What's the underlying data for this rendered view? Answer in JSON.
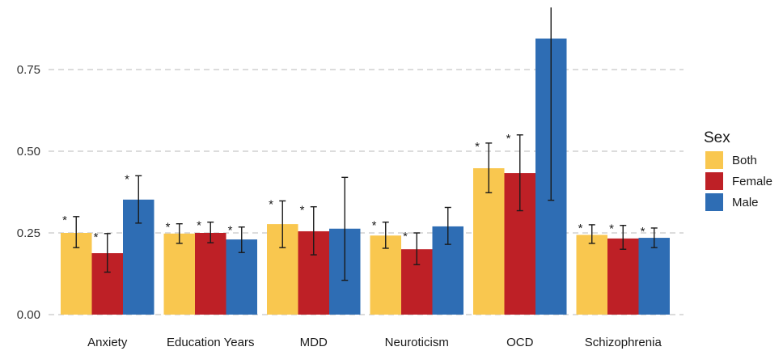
{
  "chart_data": {
    "type": "bar",
    "title": "",
    "xlabel": "",
    "ylabel": "",
    "ylim": [
      0,
      0.95
    ],
    "yticks": [
      "0.00",
      "0.25",
      "0.50",
      "0.75"
    ],
    "ytick_values": [
      0,
      0.25,
      0.5,
      0.75
    ],
    "grid": "horizontal dashed",
    "legend_position": "right",
    "legend_title": "Sex",
    "categories": [
      "Anxiety",
      "Education Years",
      "MDD",
      "Neuroticism",
      "OCD",
      "Schizophrenia"
    ],
    "series": [
      {
        "name": "Both",
        "color": "#F9C74F",
        "values": [
          0.25,
          0.248,
          0.277,
          0.242,
          0.448,
          0.244
        ],
        "err_low": [
          0.205,
          0.218,
          0.205,
          0.203,
          0.373,
          0.218
        ],
        "err_high": [
          0.3,
          0.278,
          0.348,
          0.283,
          0.525,
          0.275
        ],
        "significant": [
          true,
          true,
          true,
          true,
          true,
          true
        ]
      },
      {
        "name": "Female",
        "color": "#BE2026",
        "values": [
          0.188,
          0.25,
          0.255,
          0.2,
          0.433,
          0.233
        ],
        "err_low": [
          0.13,
          0.22,
          0.183,
          0.153,
          0.318,
          0.2
        ],
        "err_high": [
          0.248,
          0.283,
          0.33,
          0.25,
          0.55,
          0.273
        ],
        "significant": [
          true,
          true,
          true,
          true,
          true,
          true
        ]
      },
      {
        "name": "Male",
        "color": "#2E6DB4",
        "values": [
          0.352,
          0.23,
          0.263,
          0.27,
          0.845,
          0.235
        ],
        "err_low": [
          0.28,
          0.19,
          0.105,
          0.215,
          0.35,
          0.205
        ],
        "err_high": [
          0.425,
          0.268,
          0.42,
          0.328,
          0.94,
          0.265
        ],
        "significant": [
          true,
          true,
          false,
          false,
          false,
          true
        ]
      }
    ],
    "significance_marker": "*"
  }
}
